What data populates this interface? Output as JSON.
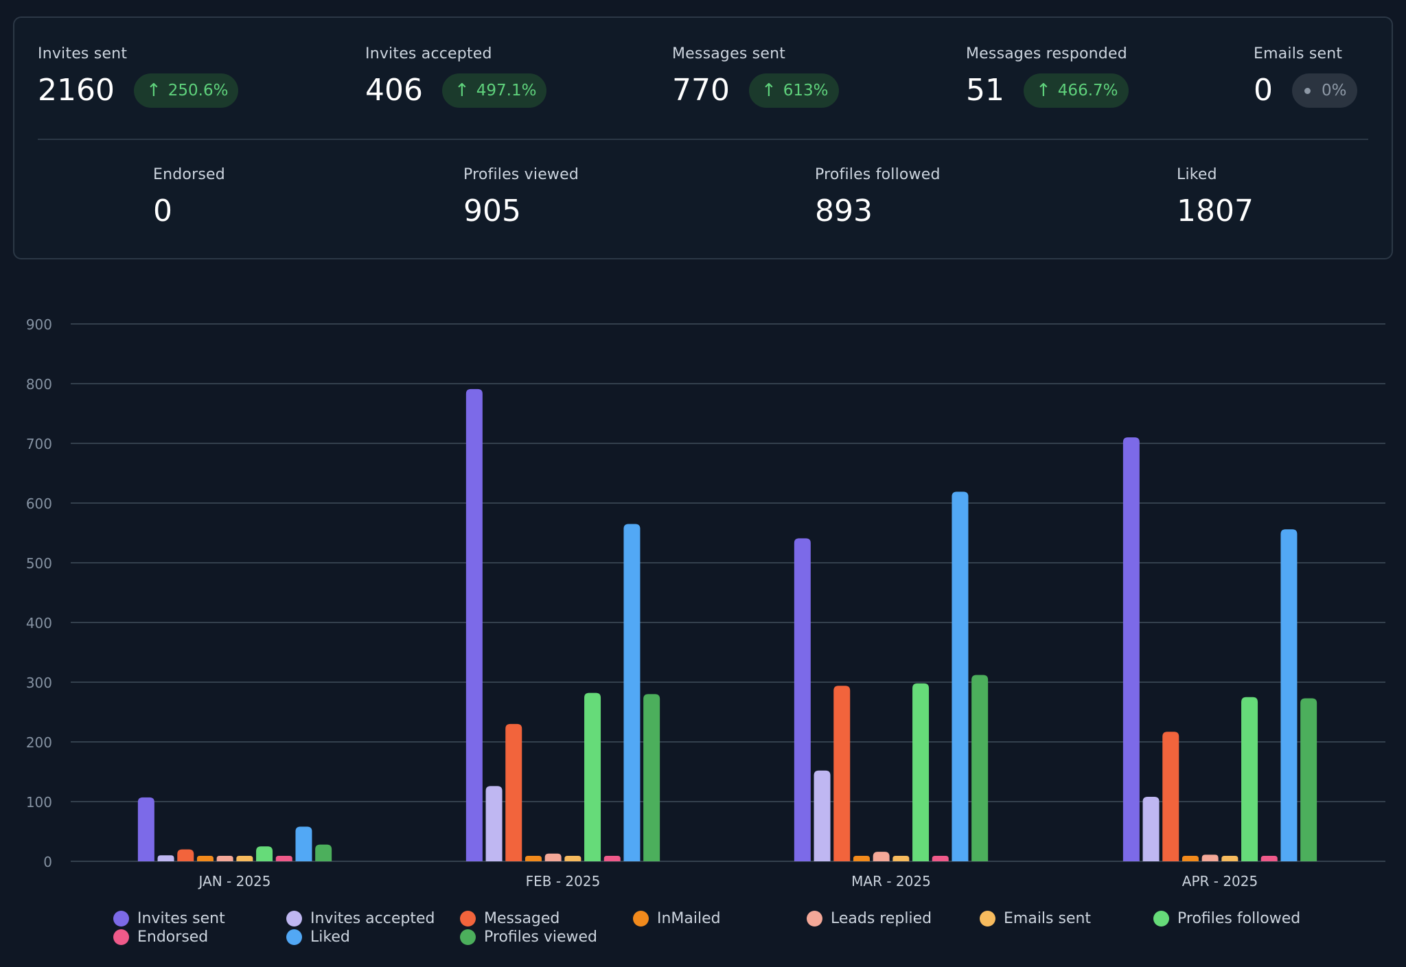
{
  "stats_top": [
    {
      "label": "Invites sent",
      "value": "2160",
      "change": "250.6%",
      "trend": "up"
    },
    {
      "label": "Invites accepted",
      "value": "406",
      "change": "497.1%",
      "trend": "up"
    },
    {
      "label": "Messages sent",
      "value": "770",
      "change": "613%",
      "trend": "up"
    },
    {
      "label": "Messages responded",
      "value": "51",
      "change": "466.7%",
      "trend": "up"
    },
    {
      "label": "Emails sent",
      "value": "0",
      "change": "0%",
      "trend": "neutral"
    }
  ],
  "stats_bottom": [
    {
      "label": "Endorsed",
      "value": "0"
    },
    {
      "label": "Profiles viewed",
      "value": "905"
    },
    {
      "label": "Profiles followed",
      "value": "893"
    },
    {
      "label": "Liked",
      "value": "1807"
    }
  ],
  "colors": {
    "up_arrow": "↑",
    "grid": "#34404d",
    "axis_text": "#8693a3"
  },
  "chart_data": {
    "type": "bar",
    "title": "",
    "xlabel": "",
    "ylabel": "",
    "ylim": [
      0,
      900
    ],
    "yticks": [
      0,
      100,
      200,
      300,
      400,
      500,
      600,
      700,
      800,
      900
    ],
    "categories": [
      "JAN - 2025",
      "FEB - 2025",
      "MAR - 2025",
      "APR - 2025"
    ],
    "legend_position": "bottom",
    "series": [
      {
        "name": "Invites sent",
        "color": "#7c6ae8",
        "values": [
          107,
          791,
          541,
          710
        ]
      },
      {
        "name": "Invites accepted",
        "color": "#bfb7f2",
        "values": [
          10,
          126,
          152,
          108
        ]
      },
      {
        "name": "Messaged",
        "color": "#f2643c",
        "values": [
          20,
          230,
          294,
          217
        ]
      },
      {
        "name": "InMailed",
        "color": "#f28a1c",
        "values": [
          8,
          8,
          8,
          8
        ]
      },
      {
        "name": "Leads replied",
        "color": "#f4a898",
        "values": [
          8,
          13,
          16,
          11
        ]
      },
      {
        "name": "Emails sent",
        "color": "#f7bb5e",
        "values": [
          8,
          8,
          8,
          8
        ]
      },
      {
        "name": "Profiles followed",
        "color": "#66db79",
        "values": [
          25,
          282,
          298,
          275
        ]
      },
      {
        "name": "Endorsed",
        "color": "#ef5a8a",
        "values": [
          8,
          8,
          8,
          8
        ]
      },
      {
        "name": "Liked",
        "color": "#52a8f5",
        "values": [
          58,
          565,
          619,
          556
        ]
      },
      {
        "name": "Profiles viewed",
        "color": "#4caf5c",
        "values": [
          28,
          280,
          312,
          273
        ]
      }
    ]
  }
}
